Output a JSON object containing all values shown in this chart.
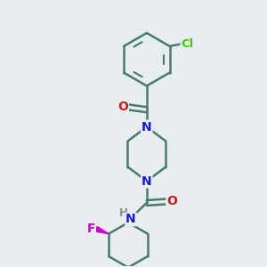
{
  "background_color": "#e8edf2",
  "bond_color": "#4a7a6a",
  "bond_width": 1.8,
  "atom_colors": {
    "N": "#1a1acc",
    "O": "#cc1a1a",
    "Cl": "#44cc00",
    "F": "#cc00cc",
    "H": "#888888"
  },
  "figsize": [
    3.0,
    3.0
  ],
  "dpi": 100
}
